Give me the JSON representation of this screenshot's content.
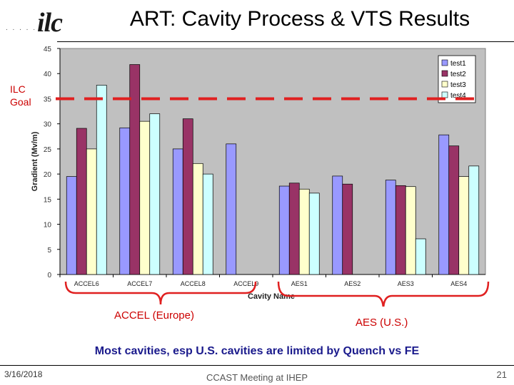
{
  "header": {
    "logo_text": "ilc",
    "logo_dots": ". . . . . . .",
    "title": "ART: Cavity Process & VTS Results"
  },
  "annotation": {
    "goal_line1": "ILC",
    "goal_line2": "Goal",
    "goal_value": 35,
    "goal_color": "#e02020"
  },
  "groups": {
    "accel": "ACCEL (Europe)",
    "aes": "AES (U.S.)",
    "brace_color": "#e02020"
  },
  "conclusion": "Most cavities, esp U.S. cavities are limited by Quench vs FE",
  "footer": {
    "date": "3/16/2018",
    "center": "CCAST Meeting at IHEP",
    "page": "21"
  },
  "chart_data": {
    "type": "bar",
    "categories": [
      "ACCEL6",
      "ACCEL7",
      "ACCEL8",
      "ACCEL9",
      "AES1",
      "AES2",
      "AES3",
      "AES4"
    ],
    "series": [
      {
        "name": "test1",
        "color": "#9999ff",
        "values": [
          19.5,
          29.2,
          25,
          26,
          17.6,
          19.6,
          18.8,
          27.8
        ]
      },
      {
        "name": "test2",
        "color": "#993366",
        "values": [
          29.1,
          41.8,
          31,
          null,
          18.2,
          18,
          17.7,
          25.6
        ]
      },
      {
        "name": "test3",
        "color": "#ffffcc",
        "values": [
          25,
          30.5,
          22.1,
          null,
          17,
          null,
          17.5,
          19.5
        ]
      },
      {
        "name": "test4",
        "color": "#ccffff",
        "values": [
          37.7,
          32,
          20,
          null,
          16.2,
          null,
          7.1,
          21.6
        ]
      }
    ],
    "xlabel": "Cavity Name",
    "ylabel": "Gradient (Mv/m)",
    "ylim": [
      0,
      45
    ],
    "yticks": [
      0,
      5,
      10,
      15,
      20,
      25,
      30,
      35,
      40,
      45
    ],
    "grid": false,
    "plot_background": "#c0c0c0",
    "legend": "top-right"
  }
}
